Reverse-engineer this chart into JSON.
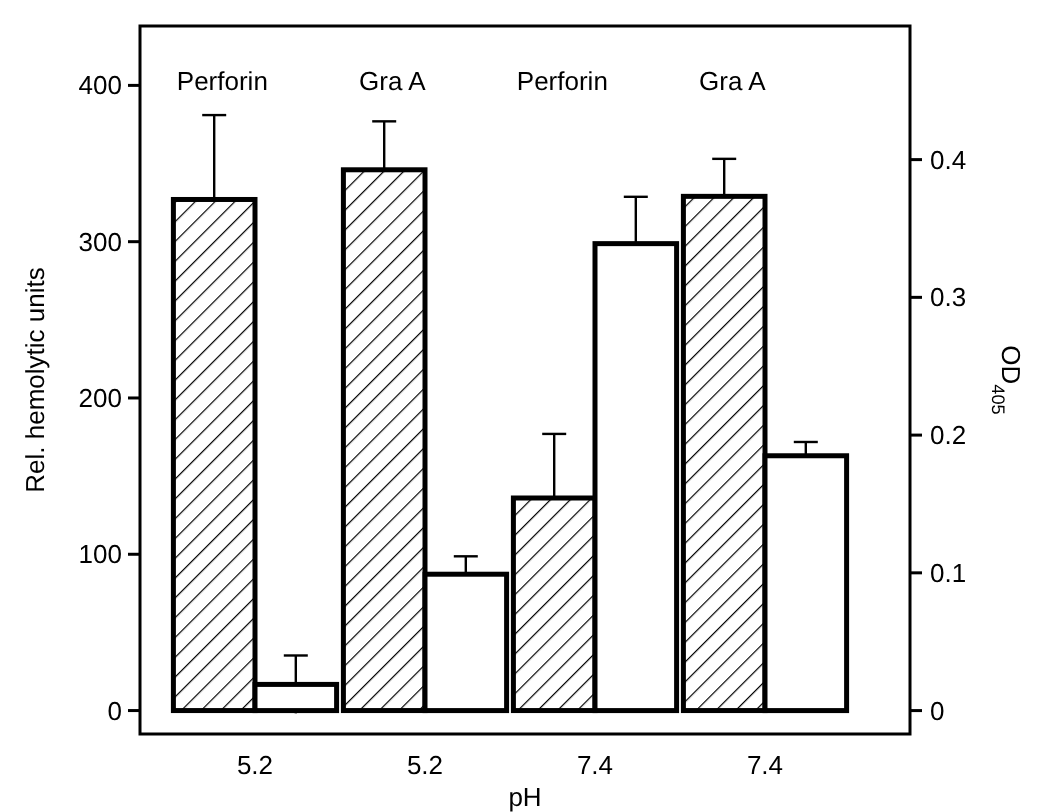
{
  "chart_data": {
    "type": "bar",
    "xlabel": "pH",
    "ylabel": "Rel. hemolytic units",
    "y2label": "OD$_{405}$",
    "categories": [
      "5.2",
      "5.2",
      "7.4",
      "7.4"
    ],
    "series": [
      {
        "color": "#000000",
        "values": [
          327,
          346,
          136,
          329
        ],
        "errors": [
          54,
          31,
          41,
          24
        ]
      },
      {
        "color": "#ffffff",
        "axis": "y2",
        "values": [
          0.019,
          0.099,
          0.339,
          0.185
        ],
        "errors": [
          0.021,
          0.013,
          0.034,
          0.01
        ]
      }
    ],
    "ylim": [
      -15,
      438
    ],
    "yticks": [
      0,
      100,
      200,
      300,
      400
    ],
    "y2lim": [
      -0.017,
      0.497
    ],
    "y2ticks": [
      0,
      0.1,
      0.2,
      0.3,
      0.4
    ],
    "annotations": [
      "Perforin",
      "Gra A",
      "Perforin",
      "Gra A"
    ]
  }
}
